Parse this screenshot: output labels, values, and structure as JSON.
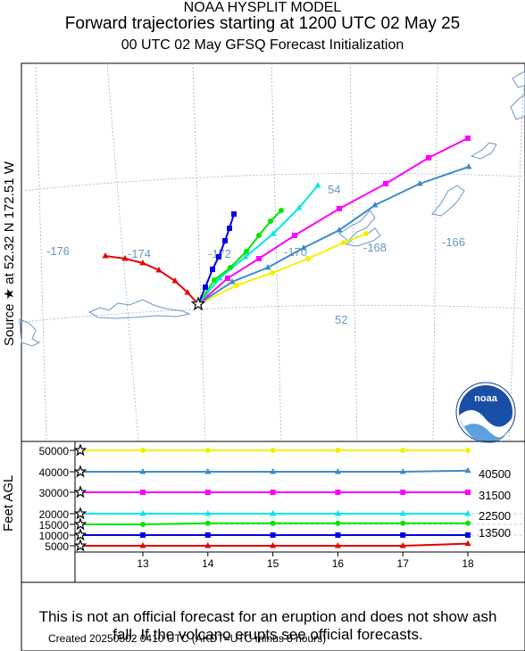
{
  "header": {
    "line1": "NOAA HYSPLIT MODEL",
    "line2": "Forward trajectories starting at 1200 UTC 02 May 25",
    "line3": "00 UTC 02 May     GFSQ  Forecast Initialization"
  },
  "side_label": "Source ★ at   52.32 N  172.51 W",
  "map": {
    "lon_labels": [
      "-176",
      "-174",
      "-172",
      "-170",
      "-168",
      "-166"
    ],
    "lat_labels": [
      "54",
      "52"
    ]
  },
  "logo": {
    "text": "noaa"
  },
  "profile": {
    "ylabel": "Feet AGL",
    "y_ticks": [
      "50000",
      "40000",
      "30000",
      "20000",
      "15000",
      "10000",
      "5000"
    ],
    "x_ticks": [
      "13",
      "14",
      "15",
      "16",
      "17",
      "18"
    ],
    "right_labels": [
      "40500",
      "31500",
      "22500",
      "13500"
    ]
  },
  "colors": {
    "yellow": "#f2f200",
    "steel": "#3c8cc8",
    "magenta": "#ff00ff",
    "cyan": "#00e6e6",
    "green": "#00e600",
    "blue": "#0000e6",
    "red": "#e60000",
    "land": "#6b96c6",
    "grid": "#8fb4d6"
  },
  "chart_data": {
    "type": "line",
    "title": "Forward trajectories starting at 1200 UTC 02 May 25",
    "xlabel": "",
    "ylabel": "Feet AGL",
    "x": [
      13,
      14,
      15,
      16,
      17,
      18
    ],
    "ylim": [
      5000,
      50000
    ],
    "series": [
      {
        "color_key": "yellow",
        "values": [
          50000,
          50000,
          50000,
          50000,
          50000,
          50000
        ]
      },
      {
        "color_key": "steel",
        "values": [
          40000,
          40000,
          40000,
          40000,
          40000,
          40500
        ]
      },
      {
        "color_key": "magenta",
        "values": [
          30000,
          30000,
          30000,
          30000,
          30000,
          30000
        ]
      },
      {
        "color_key": "cyan",
        "values": [
          20000,
          20000,
          20000,
          20000,
          20000,
          20000
        ]
      },
      {
        "color_key": "green",
        "values": [
          15000,
          15500,
          15500,
          15500,
          15500,
          15500
        ]
      },
      {
        "color_key": "blue",
        "values": [
          10000,
          10000,
          10000,
          10000,
          10000,
          10000
        ]
      },
      {
        "color_key": "red",
        "values": [
          5000,
          5000,
          5000,
          5000,
          5000,
          6000
        ]
      }
    ]
  },
  "disclaimer": "This is not an official forecast for an eruption and does not show ash fall. If the volcano erupts see official forecasts.",
  "created": "Created 20250502 0410 UTC       (AKDT=UTC minus 8 hours)"
}
